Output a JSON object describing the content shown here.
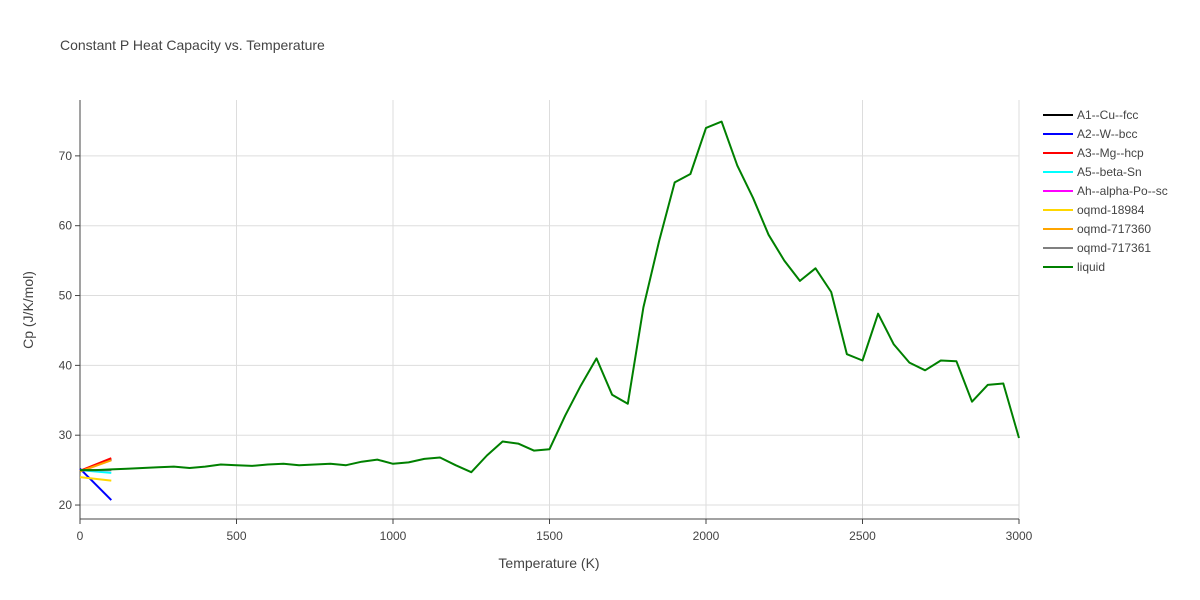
{
  "chart_data": {
    "type": "line",
    "title": "Constant P Heat Capacity vs. Temperature",
    "xlabel": "Temperature (K)",
    "ylabel": "Cp (J/K/mol)",
    "xlim": [
      0,
      3000
    ],
    "ylim": [
      18,
      78
    ],
    "xticks": [
      0,
      500,
      1000,
      1500,
      2000,
      2500,
      3000
    ],
    "yticks": [
      20,
      30,
      40,
      50,
      60,
      70
    ],
    "grid": true,
    "legend_position": "right",
    "series": [
      {
        "name": "A1--Cu--fcc",
        "color": "#000000",
        "x": [
          0,
          100
        ],
        "y": [
          24.8,
          26.5
        ]
      },
      {
        "name": "A2--W--bcc",
        "color": "#0000ff",
        "x": [
          0,
          100
        ],
        "y": [
          25.2,
          20.7
        ]
      },
      {
        "name": "A3--Mg--hcp",
        "color": "#ff0000",
        "x": [
          0,
          100
        ],
        "y": [
          24.9,
          26.7
        ]
      },
      {
        "name": "A5--beta-Sn",
        "color": "#00ffff",
        "x": [
          0,
          100
        ],
        "y": [
          25.0,
          24.6
        ]
      },
      {
        "name": "Ah--alpha-Po--sc",
        "color": "#ff00ff",
        "x": [
          0,
          100
        ],
        "y": [
          25.0,
          25.0
        ]
      },
      {
        "name": "oqmd-18984",
        "color": "#ffd700",
        "x": [
          0,
          100
        ],
        "y": [
          24.0,
          23.5
        ]
      },
      {
        "name": "oqmd-717360",
        "color": "#ffa500",
        "x": [
          0,
          100
        ],
        "y": [
          24.8,
          26.4
        ]
      },
      {
        "name": "oqmd-717361",
        "color": "#808080",
        "x": [
          0,
          100
        ],
        "y": [
          25.0,
          25.0
        ]
      },
      {
        "name": "liquid",
        "color": "#008000",
        "x": [
          0,
          50,
          100,
          150,
          200,
          250,
          300,
          350,
          400,
          450,
          500,
          550,
          600,
          650,
          700,
          750,
          800,
          850,
          900,
          950,
          1000,
          1050,
          1100,
          1150,
          1200,
          1250,
          1300,
          1350,
          1400,
          1450,
          1500,
          1550,
          1600,
          1650,
          1700,
          1750,
          1800,
          1850,
          1900,
          1950,
          2000,
          2050,
          2100,
          2150,
          2200,
          2250,
          2300,
          2350,
          2400,
          2450,
          2500,
          2550,
          2600,
          2650,
          2700,
          2750,
          2800,
          2850,
          2900,
          2950,
          3000
        ],
        "y": [
          25.0,
          25.0,
          25.1,
          25.2,
          25.3,
          25.4,
          25.5,
          25.3,
          25.5,
          25.8,
          25.7,
          25.6,
          25.8,
          25.9,
          25.7,
          25.8,
          25.9,
          25.7,
          26.2,
          26.5,
          25.9,
          26.1,
          26.6,
          26.8,
          25.7,
          24.7,
          27.1,
          29.1,
          28.8,
          27.8,
          28.0,
          32.8,
          37.1,
          41.0,
          35.8,
          34.5,
          48.3,
          57.8,
          66.2,
          67.4,
          74.0,
          74.9,
          68.6,
          64.0,
          58.7,
          55.0,
          52.1,
          53.9,
          50.5,
          41.6,
          40.7,
          47.4,
          43.0,
          40.4,
          39.3,
          40.7,
          40.6,
          34.8,
          37.2,
          37.4,
          29.6
        ]
      }
    ]
  }
}
